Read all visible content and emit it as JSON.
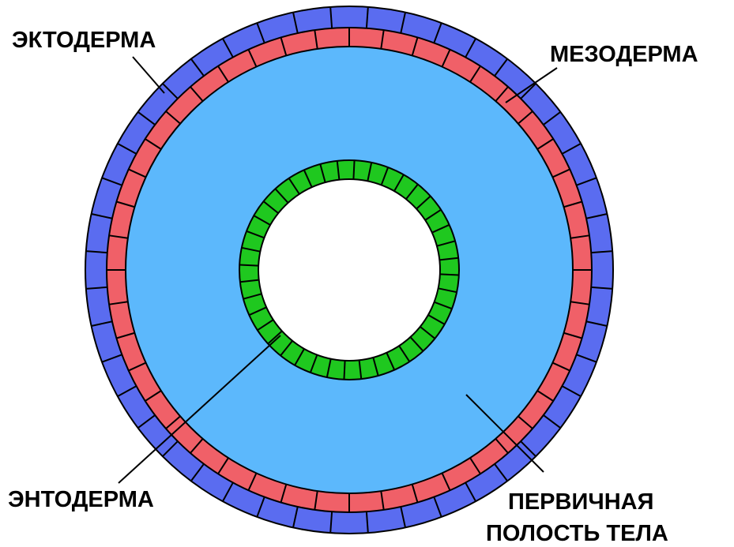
{
  "labels": {
    "ectoderm": "ЭКТОДЕРМА",
    "mesoderm": "МЕЗОДЕРМА",
    "endoderm": "ЭНТОДЕРМА",
    "cavity_line1": "ПЕРВИЧНАЯ",
    "cavity_line2": "ПОЛОСТЬ ТЕЛА"
  }
}
